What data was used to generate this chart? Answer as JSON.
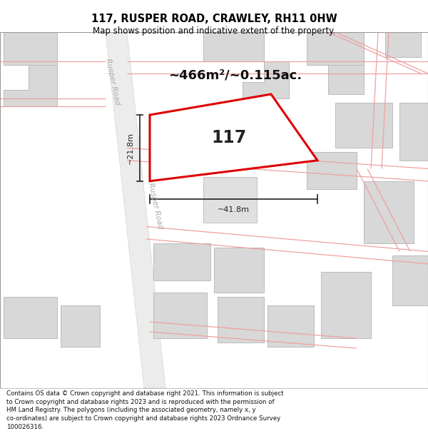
{
  "title": "117, RUSPER ROAD, CRAWLEY, RH11 0HW",
  "subtitle": "Map shows position and indicative extent of the property.",
  "area_text": "~466m²/~0.115ac.",
  "label_117": "117",
  "dim_vertical": "~21.8m",
  "dim_horizontal": "~41.8m",
  "road_label_top": "Rusper Road",
  "road_label_bottom": "Rusper Road",
  "footer": "Contains OS data © Crown copyright and database right 2021. This information is subject to Crown copyright and database rights 2023 and is reproduced with the permission of HM Land Registry. The polygons (including the associated geometry, namely x, y co-ordinates) are subject to Crown copyright and database rights 2023 Ordnance Survey 100026316.",
  "map_bg": "#ffffff",
  "road_band_color": "#e8e8e8",
  "road_band_edge": "#cccccc",
  "building_fill": "#d8d8d8",
  "building_edge": "#bbbbbb",
  "road_line_color": "#f0a0a0",
  "highlight_fill": "#ffffff",
  "highlight_edge": "#dd0000",
  "highlight_lw": 2.2,
  "dim_color": "#222222",
  "footer_fontsize": 6.2,
  "title_fontsize": 10.5,
  "subtitle_fontsize": 8.5,
  "area_fontsize": 13,
  "label_fontsize": 17
}
